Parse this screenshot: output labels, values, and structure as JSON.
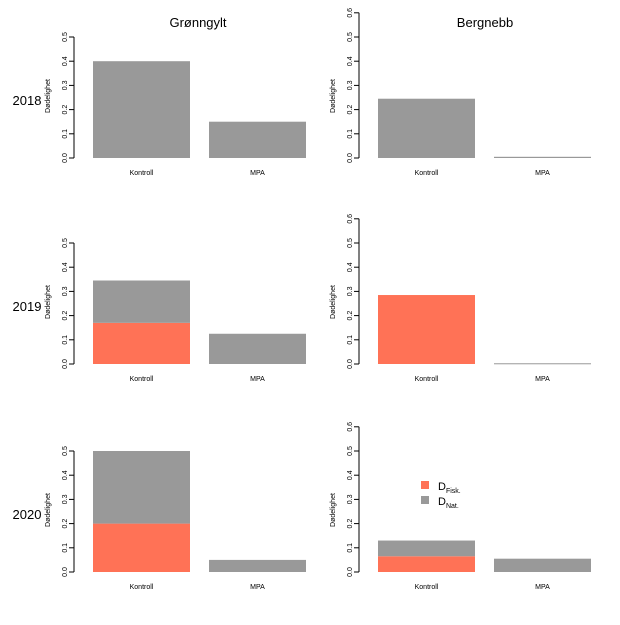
{
  "chart_data": {
    "type": "bar",
    "stacked": true,
    "col_titles": [
      "Grønngylt",
      "Bergnebb"
    ],
    "row_labels": [
      "2018",
      "2019",
      "2020"
    ],
    "ylabel": "Dødelighet",
    "categories": [
      "Kontroll",
      "MPA"
    ],
    "colors": {
      "fisk": "#ff7256",
      "nat": "#999999"
    },
    "legend": {
      "placement": "inside row 2020, column Bergnebb, upper middle",
      "entries": [
        {
          "key": "fisk",
          "main": "D",
          "sub": "Fisk."
        },
        {
          "key": "nat",
          "main": "D",
          "sub": "Nat."
        }
      ]
    },
    "panels": [
      {
        "row": "2018",
        "col": "Grønngylt",
        "ylim": [
          0,
          0.5
        ],
        "ticks": [
          "0.0",
          "0.1",
          "0.2",
          "0.3",
          "0.4",
          "0.5"
        ],
        "series": [
          {
            "name": "DFisk.",
            "key": "fisk",
            "values": [
              0,
              0
            ]
          },
          {
            "name": "DNat.",
            "key": "nat",
            "values": [
              0.4,
              0.15
            ]
          }
        ]
      },
      {
        "row": "2018",
        "col": "Bergnebb",
        "ylim": [
          0,
          0.6
        ],
        "ticks": [
          "0.0",
          "0.1",
          "0.2",
          "0.3",
          "0.4",
          "0.5",
          "0.6"
        ],
        "series": [
          {
            "name": "DFisk.",
            "key": "fisk",
            "values": [
              0,
              0
            ]
          },
          {
            "name": "DNat.",
            "key": "nat",
            "values": [
              0.245,
              0.005
            ]
          }
        ]
      },
      {
        "row": "2019",
        "col": "Grønngylt",
        "ylim": [
          0,
          0.5
        ],
        "ticks": [
          "0.0",
          "0.1",
          "0.2",
          "0.3",
          "0.4",
          "0.5"
        ],
        "series": [
          {
            "name": "DFisk.",
            "key": "fisk",
            "values": [
              0.17,
              0
            ]
          },
          {
            "name": "DNat.",
            "key": "nat",
            "values": [
              0.175,
              0.125
            ]
          }
        ]
      },
      {
        "row": "2019",
        "col": "Bergnebb",
        "ylim": [
          0,
          0.6
        ],
        "ticks": [
          "0.0",
          "0.1",
          "0.2",
          "0.3",
          "0.4",
          "0.5",
          "0.6"
        ],
        "series": [
          {
            "name": "DFisk.",
            "key": "fisk",
            "values": [
              0.285,
              0
            ]
          },
          {
            "name": "DNat.",
            "key": "nat",
            "values": [
              0,
              0.003
            ]
          }
        ]
      },
      {
        "row": "2020",
        "col": "Grønngylt",
        "ylim": [
          0,
          0.5
        ],
        "ticks": [
          "0.0",
          "0.1",
          "0.2",
          "0.3",
          "0.4",
          "0.5"
        ],
        "series": [
          {
            "name": "DFisk.",
            "key": "fisk",
            "values": [
              0.2,
              0
            ]
          },
          {
            "name": "DNat.",
            "key": "nat",
            "values": [
              0.3,
              0.05
            ]
          }
        ]
      },
      {
        "row": "2020",
        "col": "Bergnebb",
        "ylim": [
          0,
          0.6
        ],
        "ticks": [
          "0.0",
          "0.1",
          "0.2",
          "0.3",
          "0.4",
          "0.5",
          "0.6"
        ],
        "series": [
          {
            "name": "DFisk.",
            "key": "fisk",
            "values": [
              0.065,
              0
            ]
          },
          {
            "name": "DNat.",
            "key": "nat",
            "values": [
              0.065,
              0.055
            ]
          }
        ]
      }
    ]
  }
}
